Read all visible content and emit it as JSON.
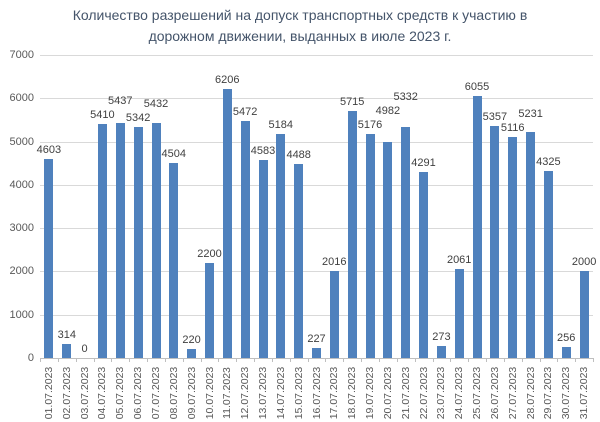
{
  "chart_data": {
    "type": "bar",
    "title": "Количество разрешений на допуск транспортных средств к участию в дорожном движении, выданных в июле 2023 г.",
    "title_lines": [
      "Количество разрешений на допуск транспортных средств к участию в",
      "дорожном движении, выданных в июле 2023 г."
    ],
    "categories": [
      "01.07.2023",
      "02.07.2023",
      "03.07.2023",
      "04.07.2023",
      "05.07.2023",
      "06.07.2023",
      "07.07.2023",
      "08.07.2023",
      "09.07.2023",
      "10.07.2023",
      "11.07.2023",
      "12.07.2023",
      "13.07.2023",
      "14.07.2023",
      "15.07.2023",
      "16.07.2023",
      "17.07.2023",
      "18.07.2023",
      "19.07.2023",
      "20.07.2023",
      "21.07.2023",
      "22.07.2023",
      "23.07.2023",
      "24.07.2023",
      "25.07.2023",
      "26.07.2023",
      "27.07.2023",
      "28.07.2023",
      "29.07.2023",
      "30.07.2023",
      "31.07.2023"
    ],
    "values": [
      4603,
      314,
      0,
      5410,
      5437,
      5342,
      5432,
      4504,
      220,
      2200,
      6206,
      5472,
      4583,
      5184,
      4488,
      227,
      2016,
      5715,
      5176,
      4982,
      5332,
      4291,
      273,
      2061,
      6055,
      5357,
      5116,
      5231,
      4325,
      256,
      2000
    ],
    "xlabel": "",
    "ylabel": "",
    "ylim": [
      0,
      7000
    ],
    "yticks": [
      0,
      1000,
      2000,
      3000,
      4000,
      5000,
      6000,
      7000
    ],
    "grid": true,
    "legend": "none",
    "data_labels": true,
    "colors": {
      "bar": "#4F81BD",
      "value_label": "#404040",
      "axis_text": "#595959",
      "title": "#44546A",
      "gridline": "#D9D9D9",
      "axis_line": "#BFBFBF",
      "background": "#FFFFFF"
    }
  }
}
